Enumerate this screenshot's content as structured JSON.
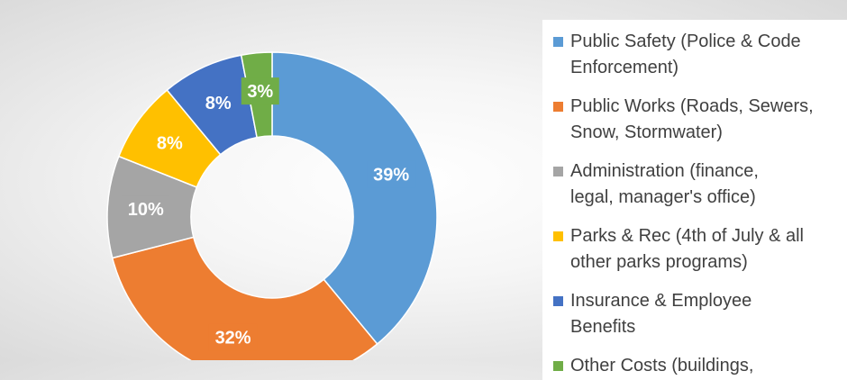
{
  "chart_data": {
    "type": "pie",
    "title": "",
    "series": [
      {
        "values": [
          39,
          32,
          10,
          8,
          8,
          3
        ],
        "labels": [
          "39%",
          "32%",
          "10%",
          "8%",
          "8%",
          "3%"
        ],
        "colors": [
          "#5B9BD5",
          "#ED7D31",
          "#A5A5A5",
          "#FFC000",
          "#4472C4",
          "#70AD47"
        ]
      }
    ],
    "categories": [
      "Public Safety (Police & Code Enforcement)",
      "Public Works (Roads, Sewers, Snow, Stormwater)",
      "Administration (finance, legal, manager's office)",
      "Parks & Rec (4th of July & all other parks programs)",
      "Insurance & Employee Benefits",
      "Other Costs (buildings, ..."
    ],
    "legend_lines": [
      [
        "Public Safety (Police & Code",
        "Enforcement)"
      ],
      [
        "Public Works (Roads, Sewers,",
        "Snow, Stormwater)"
      ],
      [
        "Administration (finance,",
        "legal, manager's office)"
      ],
      [
        "Parks & Rec (4th of July & all",
        "other parks programs)"
      ],
      [
        "Insurance & Employee",
        "Benefits"
      ],
      [
        "Other Costs (buildings,"
      ]
    ],
    "legend_position": "right",
    "donut": true
  }
}
